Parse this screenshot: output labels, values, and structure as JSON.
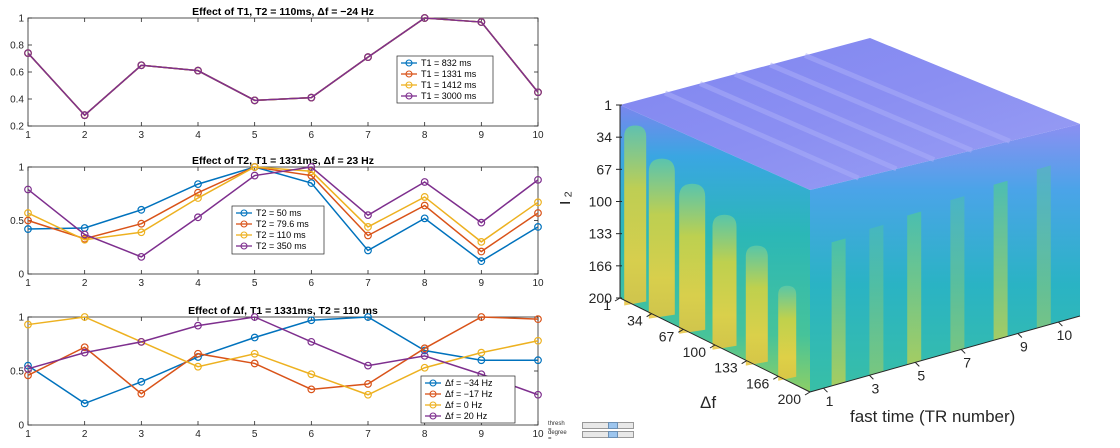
{
  "chart_data": [
    {
      "type": "line",
      "title": "Effect of T1, T2 = 110ms, Δf = −24 Hz",
      "x": [
        1,
        2,
        3,
        4,
        5,
        6,
        7,
        8,
        9,
        10
      ],
      "ylim": [
        0.2,
        1.0
      ],
      "yticks": [
        0.2,
        0.4,
        0.6,
        0.8,
        1
      ],
      "ytick_labels": [
        "0.2",
        "0.4",
        "0.6",
        "0.8",
        "1"
      ],
      "legend": "right",
      "series": [
        {
          "name": "T1 = 832 ms",
          "color": "#0072BD",
          "values": [
            0.74,
            0.28,
            0.65,
            0.61,
            0.39,
            0.41,
            0.71,
            1.0,
            0.97,
            0.45
          ]
        },
        {
          "name": "T1 = 1331 ms",
          "color": "#D95319",
          "values": [
            0.74,
            0.28,
            0.65,
            0.61,
            0.39,
            0.41,
            0.71,
            1.0,
            0.97,
            0.45
          ]
        },
        {
          "name": "T1 = 1412 ms",
          "color": "#EDB120",
          "values": [
            0.74,
            0.28,
            0.65,
            0.61,
            0.39,
            0.41,
            0.71,
            1.0,
            0.97,
            0.45
          ]
        },
        {
          "name": "T1 = 3000 ms",
          "color": "#7E2F8E",
          "values": [
            0.74,
            0.28,
            0.65,
            0.61,
            0.39,
            0.41,
            0.71,
            1.0,
            0.97,
            0.45
          ]
        }
      ]
    },
    {
      "type": "line",
      "title": "Effect of T2, T1 = 1331ms, Δf = 23 Hz",
      "x": [
        1,
        2,
        3,
        4,
        5,
        6,
        7,
        8,
        9,
        10
      ],
      "ylim": [
        0,
        1
      ],
      "yticks": [
        0,
        0.5,
        1
      ],
      "ytick_labels": [
        "0",
        "0.5",
        "1"
      ],
      "legend": "center",
      "series": [
        {
          "name": "T2 = 50 ms",
          "color": "#0072BD",
          "values": [
            0.42,
            0.43,
            0.6,
            0.84,
            1.0,
            0.85,
            0.22,
            0.52,
            0.12,
            0.44
          ]
        },
        {
          "name": "T2 = 79.6 ms",
          "color": "#D95319",
          "values": [
            0.5,
            0.33,
            0.47,
            0.76,
            1.0,
            0.92,
            0.36,
            0.64,
            0.21,
            0.57
          ]
        },
        {
          "name": "T2 = 110 ms",
          "color": "#EDB120",
          "values": [
            0.57,
            0.32,
            0.39,
            0.71,
            1.0,
            0.96,
            0.44,
            0.72,
            0.3,
            0.67
          ]
        },
        {
          "name": "T2 = 350 ms",
          "color": "#7E2F8E",
          "values": [
            0.79,
            0.37,
            0.16,
            0.53,
            0.92,
            1.0,
            0.55,
            0.86,
            0.48,
            0.88
          ]
        }
      ]
    },
    {
      "type": "line",
      "title": "Effect of Δf, T1 = 1331ms, T2 = 110 ms",
      "x": [
        1,
        2,
        3,
        4,
        5,
        6,
        7,
        8,
        9,
        10
      ],
      "ylim": [
        0,
        1
      ],
      "yticks": [
        0,
        0.5,
        1
      ],
      "ytick_labels": [
        "0",
        "0.5",
        "1"
      ],
      "legend": "bottom-right",
      "series": [
        {
          "name": "Δf = −34 Hz",
          "color": "#0072BD",
          "values": [
            0.55,
            0.2,
            0.4,
            0.63,
            0.81,
            0.97,
            1.0,
            0.69,
            0.6,
            0.6
          ]
        },
        {
          "name": "Δf = −17 Hz",
          "color": "#D95319",
          "values": [
            0.46,
            0.72,
            0.29,
            0.66,
            0.57,
            0.33,
            0.38,
            0.71,
            1.0,
            0.98
          ]
        },
        {
          "name": "Δf = 0 Hz",
          "color": "#EDB120",
          "values": [
            0.93,
            1.0,
            0.77,
            0.54,
            0.66,
            0.47,
            0.28,
            0.53,
            0.67,
            0.78
          ]
        },
        {
          "name": "Δf = 20 Hz",
          "color": "#7E2F8E",
          "values": [
            0.52,
            0.67,
            0.77,
            0.92,
            1.0,
            0.77,
            0.55,
            0.64,
            0.47,
            0.28
          ]
        }
      ]
    },
    {
      "type": "heatmap",
      "title": "",
      "xlabel": "fast time (TR number)",
      "ylabel": "Δf",
      "zlabel": "T₂",
      "x_ticks": [
        "1",
        "3",
        "5",
        "7",
        "9",
        "10"
      ],
      "y_ticks": [
        "1",
        "34",
        "67",
        "100",
        "133",
        "166",
        "200"
      ],
      "z_ticks": [
        "1",
        "34",
        "67",
        "100",
        "133",
        "166",
        "200"
      ]
    }
  ],
  "controls": {
    "thresh_label": "thresh =",
    "degree_label": "degree ="
  }
}
